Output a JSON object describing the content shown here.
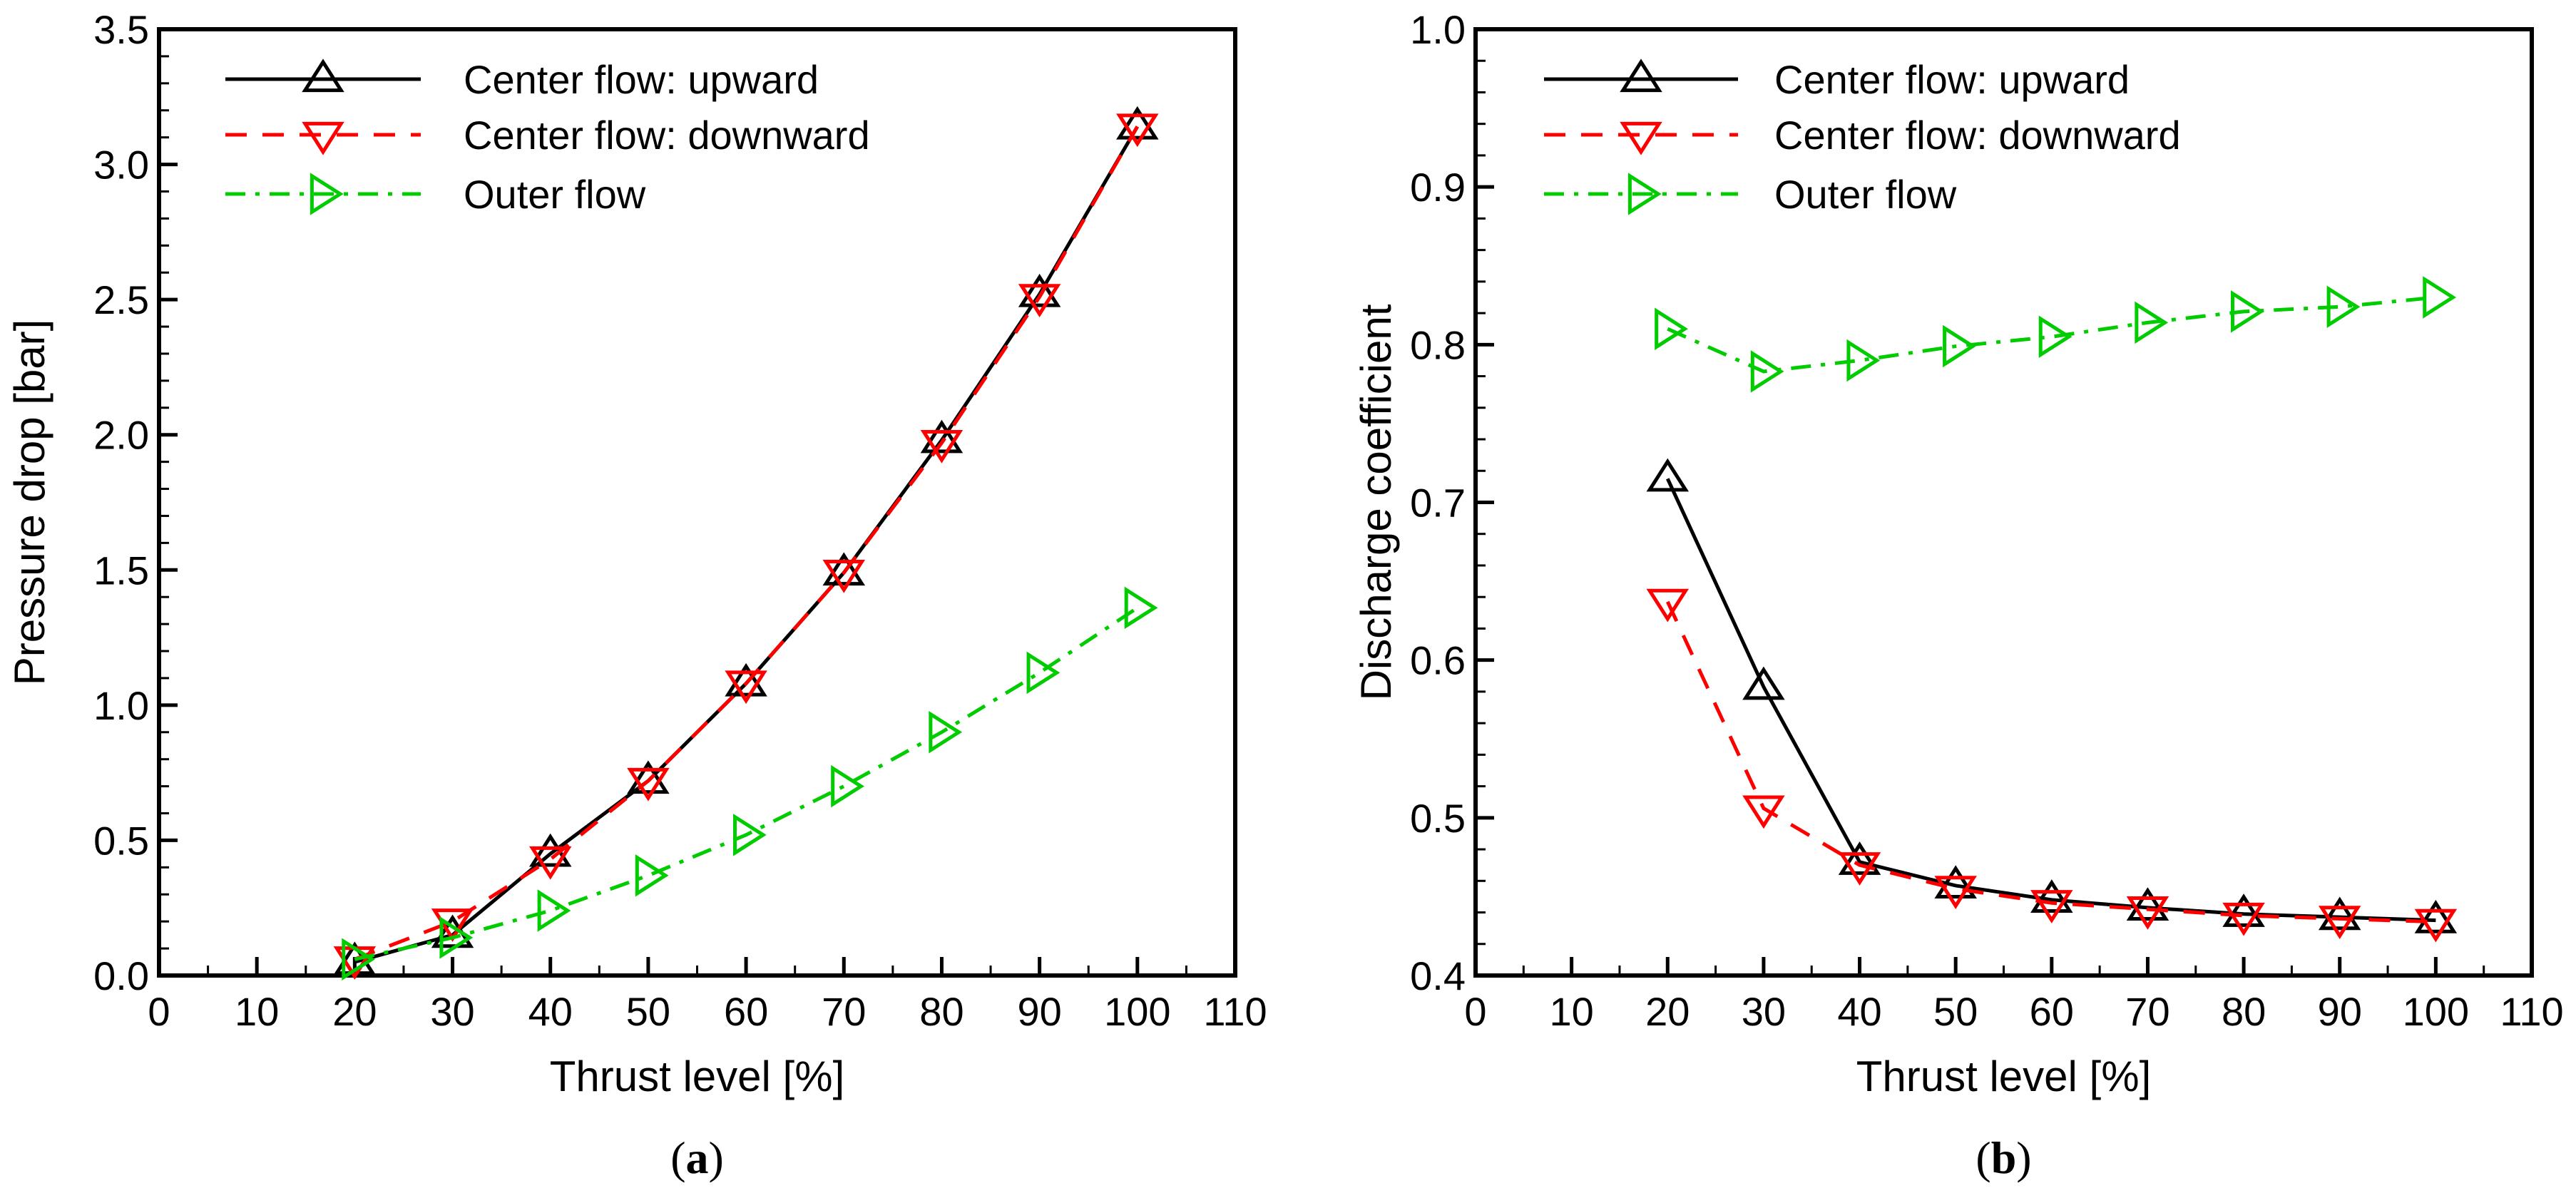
{
  "chart_data": [
    {
      "type": "line",
      "caption_open": "(",
      "caption": "a",
      "caption_close": ")",
      "xlabel": "Thrust level [%]",
      "ylabel": "Pressure drop [bar]",
      "xlim": [
        0,
        110
      ],
      "ylim": [
        0,
        3.5
      ],
      "xticks": [
        0,
        10,
        20,
        30,
        40,
        50,
        60,
        70,
        80,
        90,
        100,
        110
      ],
      "yticks": [
        "0.0",
        "0.5",
        "1.0",
        "1.5",
        "2.0",
        "2.5",
        "3.0",
        "3.5"
      ],
      "ytick_step": 0.5,
      "legend_position": "top-left",
      "x": [
        20,
        30,
        40,
        50,
        60,
        70,
        80,
        90,
        100
      ],
      "series": [
        {
          "name": "Center flow: upward",
          "color": "#000000",
          "dash": "solid",
          "marker": "triangle-up",
          "values": [
            0.05,
            0.15,
            0.45,
            0.72,
            1.08,
            1.49,
            1.98,
            2.52,
            3.14
          ]
        },
        {
          "name": "Center flow: downward",
          "color": "#ff0000",
          "dash": "dashed",
          "marker": "triangle-down",
          "values": [
            0.06,
            0.2,
            0.43,
            0.72,
            1.08,
            1.49,
            1.97,
            2.51,
            3.14
          ]
        },
        {
          "name": "Outer flow",
          "color": "#00cc00",
          "dash": "dash-dot",
          "marker": "triangle-right",
          "values": [
            0.06,
            0.14,
            0.24,
            0.37,
            0.52,
            0.7,
            0.9,
            1.12,
            1.36
          ]
        }
      ]
    },
    {
      "type": "line",
      "caption_open": "(",
      "caption": "b",
      "caption_close": ")",
      "xlabel": "Thrust level [%]",
      "ylabel": "Discharge coefficient",
      "xlim": [
        0,
        110
      ],
      "ylim": [
        0.4,
        1.0
      ],
      "xticks": [
        0,
        10,
        20,
        30,
        40,
        50,
        60,
        70,
        80,
        90,
        100,
        110
      ],
      "yticks": [
        "0.4",
        "0.5",
        "0.6",
        "0.7",
        "0.8",
        "0.9",
        "1.0"
      ],
      "ytick_step": 0.1,
      "legend_position": "top-left",
      "x": [
        20,
        30,
        40,
        50,
        60,
        70,
        80,
        90,
        100
      ],
      "series": [
        {
          "name": "Center flow: upward",
          "color": "#000000",
          "dash": "solid",
          "marker": "triangle-up",
          "values": [
            0.715,
            0.583,
            0.472,
            0.457,
            0.448,
            0.443,
            0.439,
            0.437,
            0.435
          ]
        },
        {
          "name": "Center flow: downward",
          "color": "#ff0000",
          "dash": "dashed",
          "marker": "triangle-down",
          "values": [
            0.637,
            0.506,
            0.47,
            0.455,
            0.446,
            0.442,
            0.438,
            0.436,
            0.434
          ]
        },
        {
          "name": "Outer flow",
          "color": "#00cc00",
          "dash": "dash-dot",
          "marker": "triangle-right",
          "values": [
            0.81,
            0.783,
            0.79,
            0.799,
            0.805,
            0.814,
            0.821,
            0.824,
            0.83
          ]
        }
      ]
    }
  ]
}
